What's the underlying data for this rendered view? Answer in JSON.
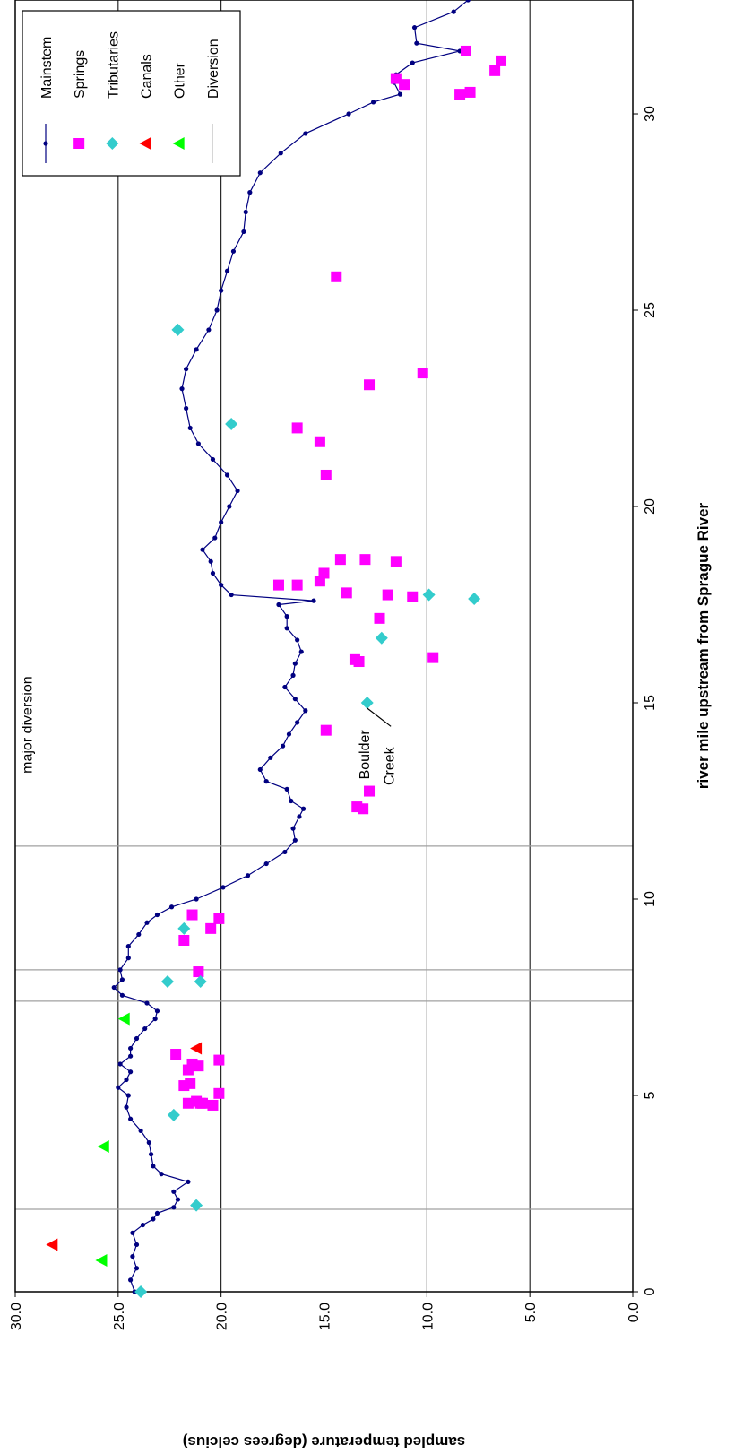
{
  "chart_data": {
    "type": "scatter",
    "xlabel": "river mile upstream from Sprague River",
    "ylabel": "sampled temperature (degrees celcius)",
    "xlim": [
      0,
      32.9
    ],
    "ylim": [
      0,
      30
    ],
    "x_ticks": [
      {
        "value": 0,
        "label": "0"
      },
      {
        "value": 5,
        "label": "5"
      },
      {
        "value": 10,
        "label": "10"
      },
      {
        "value": 15,
        "label": "15"
      },
      {
        "value": 20,
        "label": "20"
      },
      {
        "value": 25,
        "label": "25"
      },
      {
        "value": 30,
        "label": "30"
      }
    ],
    "y_ticks": [
      {
        "value": 0,
        "label": "0.0"
      },
      {
        "value": 5,
        "label": "5.0"
      },
      {
        "value": 10,
        "label": "10.0"
      },
      {
        "value": 15,
        "label": "15.0"
      },
      {
        "value": 20,
        "label": "20.0"
      },
      {
        "value": 25,
        "label": "25.0"
      },
      {
        "value": 30,
        "label": "30.0"
      }
    ],
    "grid": "horizontal lines at y ticks",
    "legend_position": "top-right",
    "orientation": "rotated 90° clockwise on page",
    "diversions_x": [
      2.1,
      7.4,
      8.2,
      11.35
    ],
    "annotations": [
      {
        "text": "major diversion",
        "x": 13.2,
        "y": 29.2
      },
      {
        "text": "Boulder",
        "x": 13.05,
        "y": 12.8
      },
      {
        "text": "Creek",
        "x": 12.9,
        "y": 11.6
      }
    ],
    "series": [
      {
        "name": "Mainstem",
        "style": "line-dot",
        "color": "#000080",
        "points": [
          [
            0.0,
            24.2
          ],
          [
            0.3,
            24.4
          ],
          [
            0.6,
            24.1
          ],
          [
            0.9,
            24.3
          ],
          [
            1.2,
            24.1
          ],
          [
            1.5,
            24.3
          ],
          [
            1.7,
            23.8
          ],
          [
            1.85,
            23.3
          ],
          [
            2.0,
            23.1
          ],
          [
            2.15,
            22.3
          ],
          [
            2.35,
            22.1
          ],
          [
            2.55,
            22.3
          ],
          [
            2.8,
            21.6
          ],
          [
            3.0,
            22.9
          ],
          [
            3.2,
            23.3
          ],
          [
            3.5,
            23.4
          ],
          [
            3.8,
            23.5
          ],
          [
            4.1,
            23.9
          ],
          [
            4.4,
            24.4
          ],
          [
            4.7,
            24.6
          ],
          [
            5.0,
            24.5
          ],
          [
            5.2,
            25.0
          ],
          [
            5.4,
            24.6
          ],
          [
            5.6,
            24.4
          ],
          [
            5.8,
            24.9
          ],
          [
            6.0,
            24.4
          ],
          [
            6.2,
            24.4
          ],
          [
            6.45,
            24.1
          ],
          [
            6.7,
            23.7
          ],
          [
            6.95,
            23.2
          ],
          [
            7.15,
            23.1
          ],
          [
            7.35,
            23.6
          ],
          [
            7.55,
            24.8
          ],
          [
            7.75,
            25.2
          ],
          [
            7.95,
            24.8
          ],
          [
            8.2,
            24.9
          ],
          [
            8.5,
            24.5
          ],
          [
            8.8,
            24.5
          ],
          [
            9.1,
            24.0
          ],
          [
            9.4,
            23.6
          ],
          [
            9.6,
            23.1
          ],
          [
            9.8,
            22.4
          ],
          [
            10.0,
            21.2
          ],
          [
            10.3,
            19.9
          ],
          [
            10.6,
            18.7
          ],
          [
            10.9,
            17.8
          ],
          [
            11.2,
            16.9
          ],
          [
            11.5,
            16.4
          ],
          [
            11.8,
            16.5
          ],
          [
            12.1,
            16.2
          ],
          [
            12.3,
            16.0
          ],
          [
            12.5,
            16.6
          ],
          [
            12.8,
            16.8
          ],
          [
            13.0,
            17.8
          ],
          [
            13.3,
            18.1
          ],
          [
            13.6,
            17.6
          ],
          [
            13.9,
            17.0
          ],
          [
            14.2,
            16.7
          ],
          [
            14.5,
            16.3
          ],
          [
            14.8,
            15.9
          ],
          [
            15.1,
            16.4
          ],
          [
            15.4,
            16.9
          ],
          [
            15.7,
            16.5
          ],
          [
            16.0,
            16.4
          ],
          [
            16.3,
            16.1
          ],
          [
            16.6,
            16.3
          ],
          [
            16.9,
            16.8
          ],
          [
            17.2,
            16.8
          ],
          [
            17.5,
            17.2
          ],
          [
            17.6,
            15.5
          ],
          [
            17.75,
            19.5
          ],
          [
            18.0,
            20.0
          ],
          [
            18.3,
            20.4
          ],
          [
            18.6,
            20.5
          ],
          [
            18.9,
            20.9
          ],
          [
            19.2,
            20.3
          ],
          [
            19.6,
            20.0
          ],
          [
            20.0,
            19.6
          ],
          [
            20.4,
            19.2
          ],
          [
            20.8,
            19.7
          ],
          [
            21.2,
            20.4
          ],
          [
            21.6,
            21.1
          ],
          [
            22.0,
            21.5
          ],
          [
            22.5,
            21.7
          ],
          [
            23.0,
            21.9
          ],
          [
            23.5,
            21.7
          ],
          [
            24.0,
            21.2
          ],
          [
            24.5,
            20.6
          ],
          [
            25.0,
            20.2
          ],
          [
            25.5,
            20.0
          ],
          [
            26.0,
            19.7
          ],
          [
            26.5,
            19.4
          ],
          [
            27.0,
            18.9
          ],
          [
            27.5,
            18.8
          ],
          [
            28.0,
            18.6
          ],
          [
            28.5,
            18.1
          ],
          [
            29.0,
            17.1
          ],
          [
            29.5,
            15.9
          ],
          [
            30.0,
            13.8
          ],
          [
            30.3,
            12.6
          ],
          [
            30.5,
            11.3
          ],
          [
            30.8,
            11.6
          ],
          [
            31.0,
            11.5
          ],
          [
            31.3,
            10.7
          ],
          [
            31.6,
            8.4
          ],
          [
            31.8,
            10.5
          ],
          [
            32.2,
            10.6
          ],
          [
            32.6,
            8.7
          ],
          [
            32.9,
            8.0
          ]
        ]
      },
      {
        "name": "Springs",
        "style": "square",
        "color": "#ff00ff",
        "points": [
          [
            4.8,
            20.9
          ],
          [
            4.8,
            21.6
          ],
          [
            4.85,
            21.2
          ],
          [
            4.8,
            21.0
          ],
          [
            4.75,
            20.4
          ],
          [
            5.05,
            20.1
          ],
          [
            5.25,
            21.8
          ],
          [
            5.3,
            21.5
          ],
          [
            5.65,
            21.6
          ],
          [
            5.75,
            21.1
          ],
          [
            5.8,
            21.4
          ],
          [
            5.9,
            20.1
          ],
          [
            6.05,
            22.2
          ],
          [
            8.15,
            21.1
          ],
          [
            8.95,
            21.8
          ],
          [
            9.25,
            20.5
          ],
          [
            9.5,
            20.1
          ],
          [
            9.6,
            21.4
          ],
          [
            12.3,
            13.1
          ],
          [
            12.35,
            13.4
          ],
          [
            12.75,
            12.8
          ],
          [
            14.3,
            14.9
          ],
          [
            16.05,
            13.3
          ],
          [
            16.1,
            13.5
          ],
          [
            16.15,
            9.7
          ],
          [
            17.15,
            12.3
          ],
          [
            17.7,
            10.7
          ],
          [
            17.75,
            11.9
          ],
          [
            17.8,
            13.9
          ],
          [
            18.0,
            17.2
          ],
          [
            18.0,
            16.3
          ],
          [
            18.1,
            15.2
          ],
          [
            18.3,
            15.0
          ],
          [
            18.6,
            11.5
          ],
          [
            18.65,
            14.2
          ],
          [
            18.65,
            13.0
          ],
          [
            20.8,
            14.9
          ],
          [
            21.65,
            15.2
          ],
          [
            22.0,
            16.3
          ],
          [
            23.1,
            12.8
          ],
          [
            23.4,
            10.2
          ],
          [
            25.85,
            14.4
          ],
          [
            30.5,
            8.4
          ],
          [
            30.55,
            7.9
          ],
          [
            30.75,
            11.1
          ],
          [
            30.9,
            11.5
          ],
          [
            31.1,
            6.7
          ],
          [
            31.35,
            6.4
          ],
          [
            31.6,
            8.1
          ]
        ]
      },
      {
        "name": "Tributaries",
        "style": "diamond",
        "color": "#33cccc",
        "points": [
          [
            0.0,
            23.9
          ],
          [
            2.2,
            21.2
          ],
          [
            4.5,
            22.3
          ],
          [
            7.9,
            21.0
          ],
          [
            7.9,
            22.6
          ],
          [
            9.25,
            21.8
          ],
          [
            15.0,
            12.9
          ],
          [
            16.65,
            12.2
          ],
          [
            17.65,
            7.7
          ],
          [
            17.75,
            9.9
          ],
          [
            22.1,
            19.5
          ],
          [
            24.5,
            22.1
          ]
        ]
      },
      {
        "name": "Canals",
        "style": "triangle",
        "color": "#ff0000",
        "points": [
          [
            1.2,
            28.2
          ],
          [
            6.2,
            21.2
          ]
        ]
      },
      {
        "name": "Other",
        "style": "triangle",
        "color": "#00ff00",
        "points": [
          [
            0.8,
            25.8
          ],
          [
            3.7,
            25.7
          ],
          [
            6.95,
            24.7
          ]
        ]
      },
      {
        "name": "Diversion",
        "style": "vline",
        "color": "#a0a0a0",
        "points": []
      }
    ]
  }
}
